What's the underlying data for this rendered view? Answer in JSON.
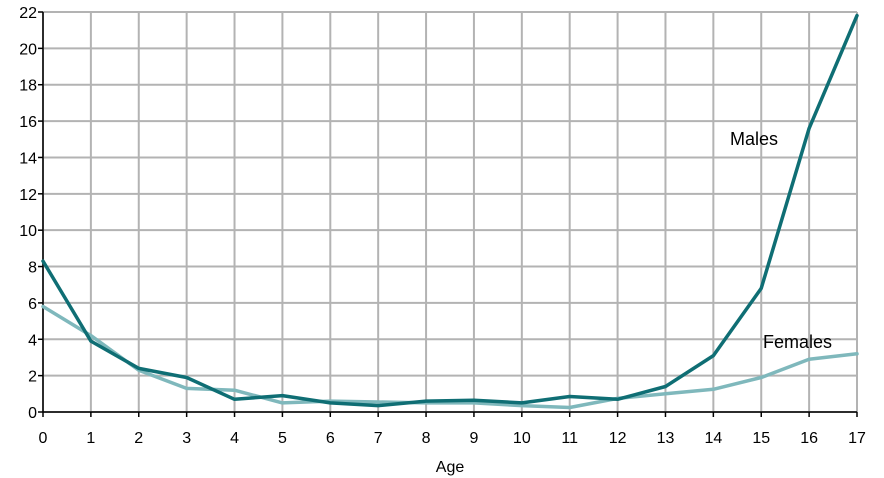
{
  "chart_data": {
    "type": "line",
    "xlabel": "Age",
    "ylabel": "",
    "x": [
      0,
      1,
      2,
      3,
      4,
      5,
      6,
      7,
      8,
      9,
      10,
      11,
      12,
      13,
      14,
      15,
      16,
      17
    ],
    "xlim": [
      0,
      17
    ],
    "ylim": [
      0,
      22
    ],
    "yticks": [
      0,
      2,
      4,
      6,
      8,
      10,
      12,
      14,
      16,
      18,
      20,
      22
    ],
    "grid": true,
    "series": [
      {
        "name": "Males",
        "color": "#0f6e74",
        "values": [
          8.3,
          3.9,
          2.4,
          1.9,
          0.7,
          0.9,
          0.5,
          0.35,
          0.6,
          0.65,
          0.5,
          0.85,
          0.7,
          1.4,
          3.1,
          6.8,
          15.6,
          21.8
        ]
      },
      {
        "name": "Females",
        "color": "#7fb8bc",
        "values": [
          5.8,
          4.2,
          2.3,
          1.3,
          1.2,
          0.5,
          0.6,
          0.55,
          0.5,
          0.5,
          0.35,
          0.25,
          0.75,
          1.0,
          1.25,
          1.9,
          2.9,
          3.2
        ]
      }
    ]
  }
}
